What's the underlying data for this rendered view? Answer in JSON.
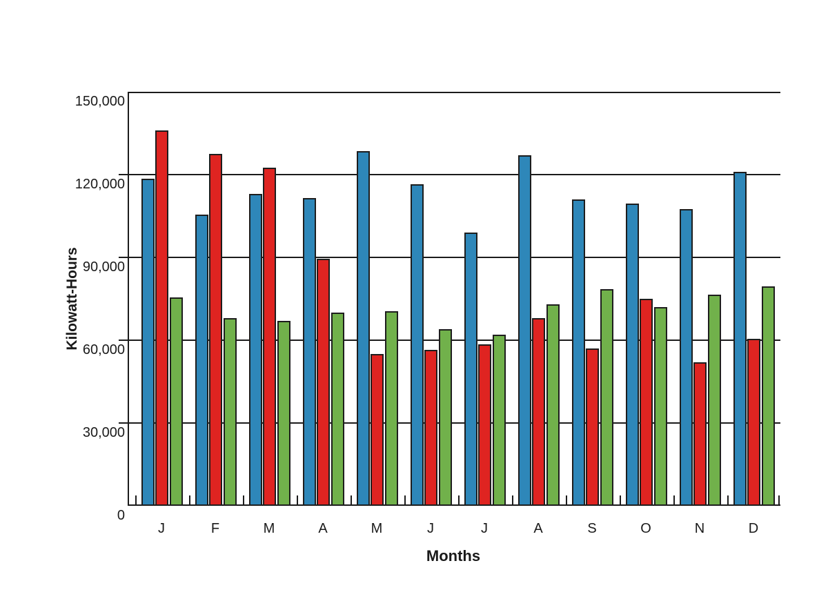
{
  "chart_data": {
    "type": "bar",
    "title": "",
    "xlabel": "Months",
    "ylabel": "Kilowatt-Hours",
    "ylim": [
      0,
      150000
    ],
    "ytick_interval": 30000,
    "ytick_labels": [
      "150,000",
      "120,000",
      "90,000",
      "60,000",
      "30,000",
      "0"
    ],
    "grid": "horizontal",
    "legend": "none",
    "categories": [
      "J",
      "F",
      "M",
      "A",
      "M",
      "J",
      "J",
      "A",
      "S",
      "O",
      "N",
      "D"
    ],
    "series": [
      {
        "name": "series-blue",
        "color": "#2E87B9",
        "values": [
          118500,
          105500,
          113000,
          111500,
          128500,
          116500,
          99000,
          127000,
          111000,
          109500,
          107500,
          121000
        ]
      },
      {
        "name": "series-red",
        "color": "#DF2421",
        "values": [
          136000,
          127500,
          122500,
          89500,
          55000,
          56500,
          58500,
          68000,
          57000,
          75000,
          52000,
          60500
        ]
      },
      {
        "name": "series-green",
        "color": "#71B14B",
        "values": [
          75500,
          68000,
          67000,
          70000,
          70500,
          64000,
          62000,
          73000,
          78500,
          72000,
          76500,
          79500
        ]
      }
    ]
  },
  "colors": {
    "axis": "#1b1b1b",
    "text": "#1a1a1a",
    "background": "#ffffff"
  }
}
